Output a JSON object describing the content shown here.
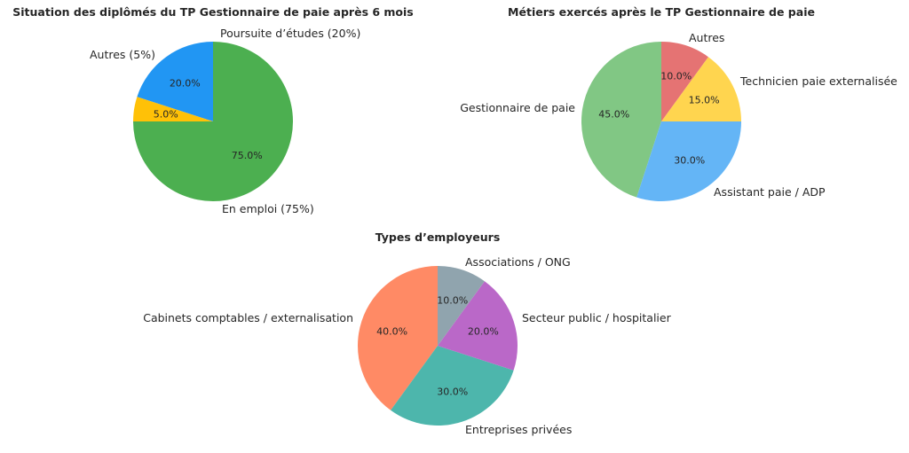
{
  "chart_data": [
    {
      "type": "pie",
      "title": "Situation des diplômés du TP Gestionnaire de paie après 6 mois",
      "slices": [
        {
          "label": "En emploi (75%)",
          "value": 75,
          "pct_label": "75.0%",
          "color": "#4caf50"
        },
        {
          "label": "Poursuite d’études (20%)",
          "value": 20,
          "pct_label": "20.0%",
          "color": "#2196f3"
        },
        {
          "label": "Autres (5%)",
          "value": 5,
          "pct_label": "5.0%",
          "color": "#ffc107"
        }
      ]
    },
    {
      "type": "pie",
      "title": "Métiers exercés après le TP Gestionnaire de paie",
      "slices": [
        {
          "label": "Gestionnaire de paie",
          "value": 45,
          "pct_label": "45.0%",
          "color": "#81c784"
        },
        {
          "label": "Assistant paie / ADP",
          "value": 30,
          "pct_label": "30.0%",
          "color": "#64b5f6"
        },
        {
          "label": "Technicien paie externalisée",
          "value": 15,
          "pct_label": "15.0%",
          "color": "#ffd54f"
        },
        {
          "label": "Autres",
          "value": 10,
          "pct_label": "10.0%",
          "color": "#e57373"
        }
      ]
    },
    {
      "type": "pie",
      "title": "Types d’employeurs",
      "slices": [
        {
          "label": "Cabinets comptables / externalisation",
          "value": 40,
          "pct_label": "40.0%",
          "color": "#ff8a65"
        },
        {
          "label": "Entreprises privées",
          "value": 30,
          "pct_label": "30.0%",
          "color": "#4db6ac"
        },
        {
          "label": "Secteur public / hospitalier",
          "value": 20,
          "pct_label": "20.0%",
          "color": "#ba68c8"
        },
        {
          "label": "Associations / ONG",
          "value": 10,
          "pct_label": "10.0%",
          "color": "#90a4ae"
        }
      ]
    }
  ]
}
